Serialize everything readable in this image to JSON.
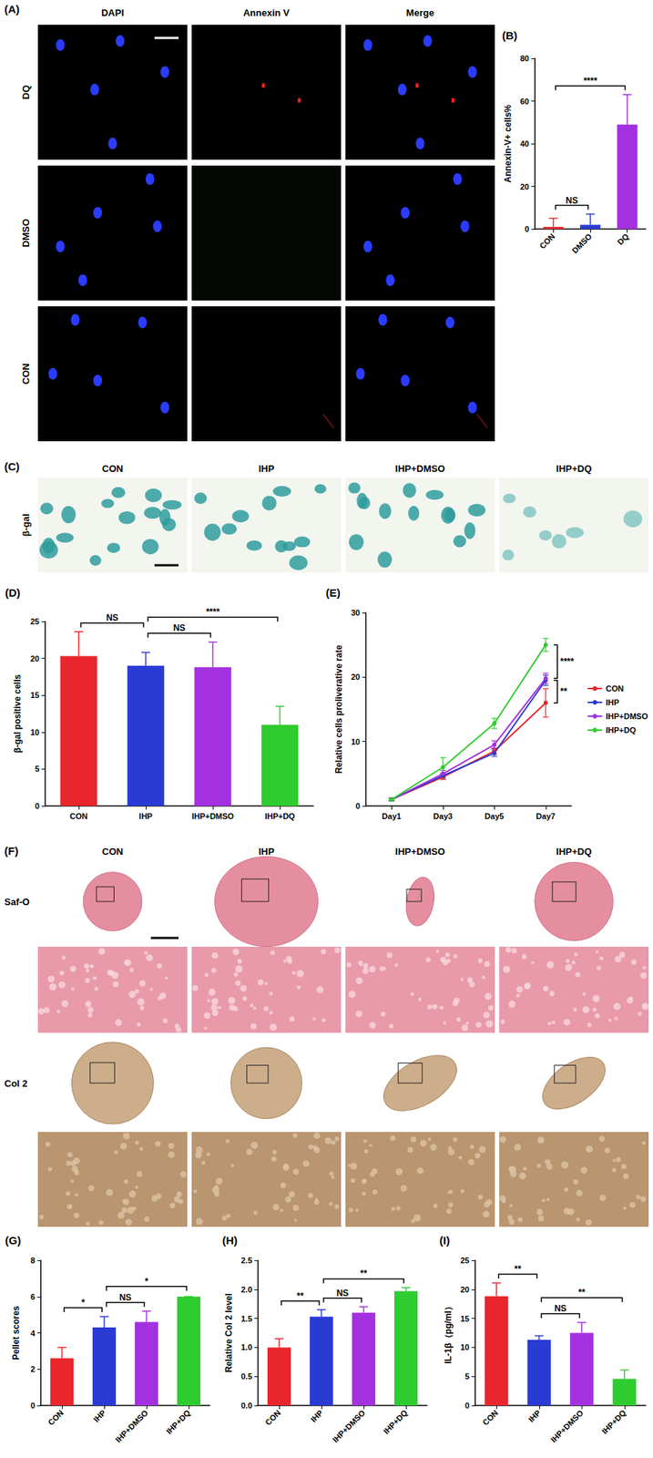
{
  "image_panels": [
    {
      "panel": "(A)",
      "columns": [
        "DAPI",
        "Annexin V",
        "Merge"
      ],
      "rows": [
        "DQ",
        "DMSO",
        "CON"
      ]
    },
    {
      "panel": "(C)",
      "columns": [
        "CON",
        "IHP",
        "IHP+DMSO",
        "IHP+DQ"
      ],
      "rows": [
        "β-gal"
      ]
    },
    {
      "panel": "(F)",
      "columns": [
        "CON",
        "IHP",
        "IHP+DMSO",
        "IHP+DQ"
      ],
      "rows": [
        "Saf-O",
        "Col 2"
      ]
    }
  ],
  "chart_data": [
    {
      "panel": "(B)",
      "type": "bar",
      "y_label": "Annexin-V+ cells%",
      "categories": [
        "CON",
        "DMSO",
        "DQ"
      ],
      "values": [
        1,
        2,
        49
      ],
      "errors": [
        4,
        5,
        14
      ],
      "colors": [
        "#e8262b",
        "#2a3bd4",
        "#a431e0"
      ],
      "ylim": [
        0,
        80
      ],
      "yticks": [
        0,
        20,
        40,
        60,
        80
      ],
      "grid": false,
      "annotations": [
        {
          "from": "CON",
          "to": "DMSO",
          "label": "NS"
        },
        {
          "from": "CON",
          "to": "DQ",
          "label": "****"
        }
      ]
    },
    {
      "panel": "(D)",
      "type": "bar",
      "y_label": "β-gal positive cells",
      "categories": [
        "CON",
        "IHP",
        "IHP+DMSO",
        "IHP+DQ"
      ],
      "values": [
        20.3,
        19,
        18.8,
        11
      ],
      "errors": [
        3.3,
        1.8,
        3.4,
        2.5
      ],
      "colors": [
        "#e8262b",
        "#2a3bd4",
        "#a431e0",
        "#2fcc2f"
      ],
      "ylim": [
        0,
        25
      ],
      "yticks": [
        0,
        5,
        10,
        15,
        20,
        25
      ],
      "grid": false,
      "annotations": [
        {
          "from": "CON",
          "to": "IHP",
          "label": "NS"
        },
        {
          "from": "IHP",
          "to": "IHP+DMSO",
          "label": "NS"
        },
        {
          "from": "IHP",
          "to": "IHP+DQ",
          "label": "****"
        }
      ]
    },
    {
      "panel": "(E)",
      "type": "line",
      "y_label": "Relative cells proliverative rate",
      "categories": [
        "Day1",
        "Day3",
        "Day5",
        "Day7"
      ],
      "series": [
        {
          "name": "CON",
          "color": "#e8262b",
          "values": [
            1,
            4.5,
            8.5,
            16
          ],
          "errors": [
            0.2,
            0.4,
            0.5,
            2.2
          ]
        },
        {
          "name": "IHP",
          "color": "#2a3bd4",
          "values": [
            1,
            4.7,
            8.2,
            19.5
          ],
          "errors": [
            0.2,
            0.4,
            0.5,
            0.8
          ]
        },
        {
          "name": "IHP+DMSO",
          "color": "#a431e0",
          "values": [
            1,
            5,
            9.5,
            19.8
          ],
          "errors": [
            0.2,
            0.5,
            0.6,
            0.8
          ]
        },
        {
          "name": "IHP+DQ",
          "color": "#2fcc2f",
          "values": [
            1,
            6,
            12.8,
            25
          ],
          "errors": [
            0.2,
            1.5,
            0.8,
            1
          ]
        }
      ],
      "ylim": [
        0,
        30
      ],
      "yticks": [
        0,
        10,
        20,
        30
      ],
      "grid": false,
      "legend": "right",
      "marker": "circle",
      "annotations": [
        {
          "between": [
            "IHP+DQ",
            "IHP+DMSO"
          ],
          "label": "****"
        },
        {
          "between": [
            "IHP",
            "CON"
          ],
          "label": "**"
        }
      ]
    },
    {
      "panel": "(G)",
      "type": "bar",
      "y_label": "Pellet scores",
      "categories": [
        "CON",
        "IHP",
        "IHP+DMSO",
        "IHP+DQ"
      ],
      "values": [
        2.6,
        4.3,
        4.6,
        6
      ],
      "errors": [
        0.6,
        0.6,
        0.6,
        0
      ],
      "colors": [
        "#e8262b",
        "#2a3bd4",
        "#a431e0",
        "#2fcc2f"
      ],
      "ylim": [
        0,
        8
      ],
      "yticks": [
        0,
        2,
        4,
        6,
        8
      ],
      "grid": false,
      "annotations": [
        {
          "from": "CON",
          "to": "IHP",
          "label": "*"
        },
        {
          "from": "IHP",
          "to": "IHP+DMSO",
          "label": "NS"
        },
        {
          "from": "IHP",
          "to": "IHP+DQ",
          "label": "*"
        }
      ]
    },
    {
      "panel": "(H)",
      "type": "bar",
      "y_label": "Relative Col 2 level",
      "categories": [
        "CON",
        "IHP",
        "IHP+DMSO",
        "IHP+DQ"
      ],
      "values": [
        1,
        1.53,
        1.6,
        1.97
      ],
      "errors": [
        0.15,
        0.12,
        0.1,
        0.06
      ],
      "colors": [
        "#e8262b",
        "#2a3bd4",
        "#a431e0",
        "#2fcc2f"
      ],
      "ylim": [
        0,
        2.5
      ],
      "yticks": [
        {
          "value": 0,
          "label": "0.0"
        },
        0.5,
        {
          "value": 1,
          "label": "1.0"
        },
        1.5,
        {
          "value": 2,
          "label": "2.0"
        },
        2.5
      ],
      "grid": false,
      "annotations": [
        {
          "from": "CON",
          "to": "IHP",
          "label": "**"
        },
        {
          "from": "IHP",
          "to": "IHP+DMSO",
          "label": "NS"
        },
        {
          "from": "IHP",
          "to": "IHP+DQ",
          "label": "**"
        }
      ]
    },
    {
      "panel": "(I)",
      "type": "bar",
      "y_label": "IL-1β（pg/ml）",
      "categories": [
        "CON",
        "IHP",
        "IHP+DMSO",
        "IHP+DQ"
      ],
      "values": [
        18.8,
        11.3,
        12.5,
        4.6
      ],
      "errors": [
        2.3,
        0.7,
        1.8,
        1.5
      ],
      "colors": [
        "#e8262b",
        "#2a3bd4",
        "#a431e0",
        "#2fcc2f"
      ],
      "ylim": [
        0,
        25
      ],
      "yticks": [
        0,
        5,
        10,
        15,
        20,
        25
      ],
      "grid": false,
      "annotations": [
        {
          "from": "CON",
          "to": "IHP",
          "label": "**"
        },
        {
          "from": "IHP",
          "to": "IHP+DMSO",
          "label": "NS"
        },
        {
          "from": "IHP",
          "to": "IHP+DQ",
          "label": "**"
        }
      ]
    }
  ]
}
